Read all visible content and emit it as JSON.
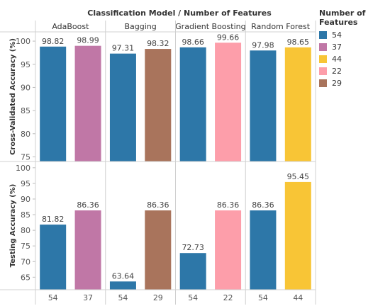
{
  "chart_data": {
    "type": "bar",
    "title": "Classification Model / Number of Features",
    "facets": [
      "AdaBoost",
      "Bagging",
      "Gradient Boosting",
      "Random Forest"
    ],
    "x": [
      "54",
      "37",
      "54",
      "29",
      "54",
      "22",
      "54",
      "44"
    ],
    "groups": [
      "AdaBoost",
      "AdaBoost",
      "Bagging",
      "Bagging",
      "Gradient Boosting",
      "Gradient Boosting",
      "Random Forest",
      "Random Forest"
    ],
    "color_keys": [
      "54",
      "37",
      "54",
      "29",
      "54",
      "22",
      "54",
      "44"
    ],
    "rows": [
      {
        "ylabel": "Cross-Validated Accuracy (%)",
        "ylim": [
          74,
          102
        ],
        "yticks": [
          75,
          80,
          85,
          90,
          95,
          100
        ],
        "values": [
          98.82,
          98.99,
          97.31,
          98.32,
          98.66,
          99.66,
          97.98,
          98.65
        ],
        "labels": [
          "98.82",
          "98.99",
          "97.31",
          "98.32",
          "98.66",
          "99.66",
          "97.98",
          "98.65"
        ]
      },
      {
        "ylabel": "Testing Accuracy (%)",
        "ylim": [
          61,
          102
        ],
        "yticks": [
          65,
          70,
          75,
          80,
          85,
          90,
          95,
          100
        ],
        "values": [
          81.82,
          86.36,
          63.64,
          86.36,
          72.73,
          86.36,
          86.36,
          95.45
        ],
        "labels": [
          "81.82",
          "86.36",
          "63.64",
          "86.36",
          "72.73",
          "86.36",
          "86.36",
          "95.45"
        ]
      }
    ],
    "legend": {
      "title": "Number of Features",
      "placement": "right",
      "items": [
        {
          "label": "54",
          "color": "#2d77a8"
        },
        {
          "label": "37",
          "color": "#c077a6"
        },
        {
          "label": "44",
          "color": "#f8c536"
        },
        {
          "label": "22",
          "color": "#fd9eaa"
        },
        {
          "label": "29",
          "color": "#a9745c"
        }
      ]
    },
    "grid": false
  }
}
